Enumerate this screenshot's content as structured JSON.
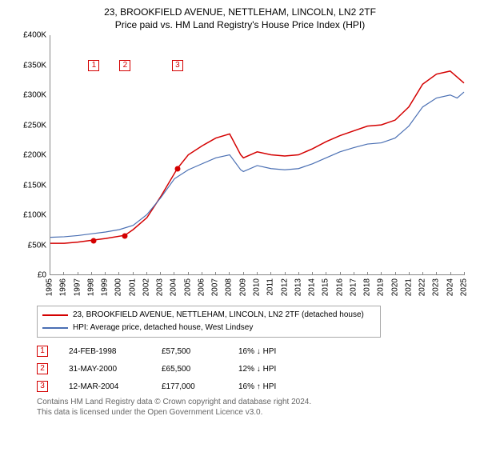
{
  "title": {
    "line1": "23, BROOKFIELD AVENUE, NETTLEHAM, LINCOLN, LN2 2TF",
    "line2": "Price paid vs. HM Land Registry's House Price Index (HPI)"
  },
  "chart": {
    "type": "line",
    "background_color": "#ffffff",
    "axis_color": "#888888",
    "title_fontsize": 12,
    "tick_fontsize": 10,
    "x": {
      "min": 1995,
      "max": 2025,
      "ticks": [
        1995,
        1996,
        1997,
        1998,
        1999,
        2000,
        2001,
        2002,
        2003,
        2004,
        2005,
        2006,
        2007,
        2008,
        2009,
        2010,
        2011,
        2012,
        2013,
        2014,
        2015,
        2016,
        2017,
        2018,
        2019,
        2020,
        2021,
        2022,
        2023,
        2024,
        2025
      ],
      "tick_labels": [
        "1995",
        "1996",
        "1997",
        "1998",
        "1999",
        "2000",
        "2001",
        "2002",
        "2003",
        "2004",
        "2005",
        "2006",
        "2007",
        "2008",
        "2009",
        "2010",
        "2011",
        "2012",
        "2013",
        "2014",
        "2015",
        "2016",
        "2017",
        "2018",
        "2019",
        "2020",
        "2021",
        "2022",
        "2023",
        "2024",
        "2025"
      ]
    },
    "y": {
      "min": 0,
      "max": 400000,
      "ticks": [
        0,
        50000,
        100000,
        150000,
        200000,
        250000,
        300000,
        350000,
        400000
      ],
      "tick_labels": [
        "£0",
        "£50K",
        "£100K",
        "£150K",
        "£200K",
        "£250K",
        "£300K",
        "£350K",
        "£400K"
      ]
    },
    "series": [
      {
        "name": "23, BROOKFIELD AVENUE, NETTLEHAM, LINCOLN, LN2 2TF (detached house)",
        "color": "#d40000",
        "line_width": 1.5,
        "data": [
          [
            1995,
            52000
          ],
          [
            1996,
            52000
          ],
          [
            1997,
            54000
          ],
          [
            1998.15,
            57500
          ],
          [
            1999,
            60000
          ],
          [
            2000.41,
            65500
          ],
          [
            2001,
            75000
          ],
          [
            2002,
            95000
          ],
          [
            2003,
            130000
          ],
          [
            2004.2,
            177000
          ],
          [
            2005,
            200000
          ],
          [
            2006,
            215000
          ],
          [
            2007,
            228000
          ],
          [
            2008,
            235000
          ],
          [
            2008.8,
            200000
          ],
          [
            2009,
            195000
          ],
          [
            2010,
            205000
          ],
          [
            2011,
            200000
          ],
          [
            2012,
            198000
          ],
          [
            2013,
            200000
          ],
          [
            2014,
            210000
          ],
          [
            2015,
            222000
          ],
          [
            2016,
            232000
          ],
          [
            2017,
            240000
          ],
          [
            2018,
            248000
          ],
          [
            2019,
            250000
          ],
          [
            2020,
            258000
          ],
          [
            2021,
            280000
          ],
          [
            2022,
            318000
          ],
          [
            2023,
            335000
          ],
          [
            2024,
            340000
          ],
          [
            2024.5,
            330000
          ],
          [
            2025,
            320000
          ]
        ]
      },
      {
        "name": "HPI: Average price, detached house, West Lindsey",
        "color": "#4a6fb3",
        "line_width": 1.2,
        "data": [
          [
            1995,
            62000
          ],
          [
            1996,
            63000
          ],
          [
            1997,
            65000
          ],
          [
            1998,
            68000
          ],
          [
            1999,
            71000
          ],
          [
            2000,
            75000
          ],
          [
            2001,
            82000
          ],
          [
            2002,
            100000
          ],
          [
            2003,
            128000
          ],
          [
            2004,
            160000
          ],
          [
            2005,
            175000
          ],
          [
            2006,
            185000
          ],
          [
            2007,
            195000
          ],
          [
            2008,
            200000
          ],
          [
            2008.8,
            175000
          ],
          [
            2009,
            172000
          ],
          [
            2010,
            182000
          ],
          [
            2011,
            177000
          ],
          [
            2012,
            175000
          ],
          [
            2013,
            177000
          ],
          [
            2014,
            185000
          ],
          [
            2015,
            195000
          ],
          [
            2016,
            205000
          ],
          [
            2017,
            212000
          ],
          [
            2018,
            218000
          ],
          [
            2019,
            220000
          ],
          [
            2020,
            228000
          ],
          [
            2021,
            248000
          ],
          [
            2022,
            280000
          ],
          [
            2023,
            295000
          ],
          [
            2024,
            300000
          ],
          [
            2024.5,
            295000
          ],
          [
            2025,
            305000
          ]
        ]
      }
    ],
    "markers": [
      {
        "n": "1",
        "x": 1998.15,
        "y": 57500,
        "label_y": 350000,
        "color": "#d40000"
      },
      {
        "n": "2",
        "x": 2000.41,
        "y": 65500,
        "label_y": 350000,
        "color": "#d40000"
      },
      {
        "n": "3",
        "x": 2004.2,
        "y": 177000,
        "label_y": 350000,
        "color": "#d40000"
      }
    ]
  },
  "legend": {
    "items": [
      {
        "color": "#d40000",
        "label": "23, BROOKFIELD AVENUE, NETTLEHAM, LINCOLN, LN2 2TF (detached house)"
      },
      {
        "color": "#4a6fb3",
        "label": "HPI: Average price, detached house, West Lindsey"
      }
    ]
  },
  "events": [
    {
      "n": "1",
      "color": "#d40000",
      "date": "24-FEB-1998",
      "price": "£57,500",
      "delta": "16% ↓ HPI"
    },
    {
      "n": "2",
      "color": "#d40000",
      "date": "31-MAY-2000",
      "price": "£65,500",
      "delta": "12% ↓ HPI"
    },
    {
      "n": "3",
      "color": "#d40000",
      "date": "12-MAR-2004",
      "price": "£177,000",
      "delta": "16% ↑ HPI"
    }
  ],
  "footer": {
    "line1": "Contains HM Land Registry data © Crown copyright and database right 2024.",
    "line2": "This data is licensed under the Open Government Licence v3.0."
  }
}
